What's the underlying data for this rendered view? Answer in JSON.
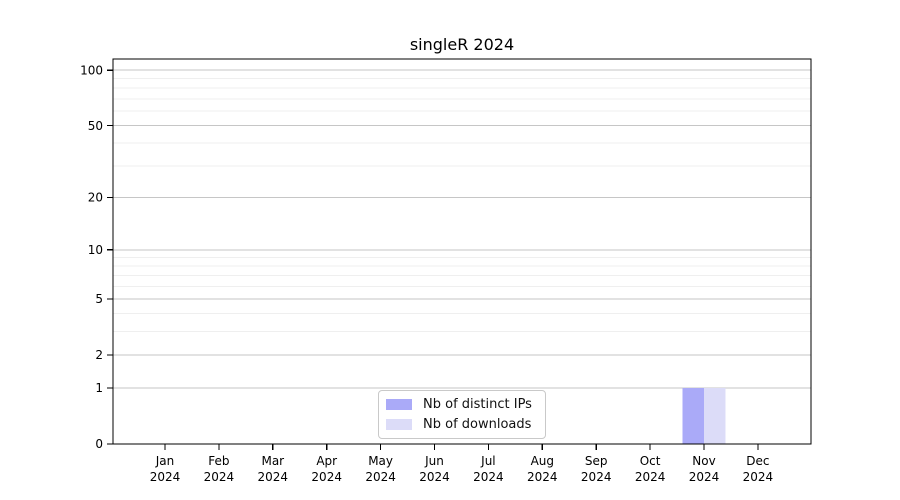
{
  "title": "singleR 2024",
  "axes": {
    "y_tick_labels": [
      "0",
      "1",
      "2",
      "5",
      "10",
      "20",
      "50",
      "100"
    ],
    "x_tick_labels": [
      "Jan 2024",
      "Feb 2024",
      "Mar 2024",
      "Apr 2024",
      "May 2024",
      "Jun 2024",
      "Jul 2024",
      "Aug 2024",
      "Sep 2024",
      "Oct 2024",
      "Nov 2024",
      "Dec 2024"
    ]
  },
  "legend": {
    "items": [
      {
        "label": "Nb of distinct IPs",
        "color": "#aaaaf8"
      },
      {
        "label": "Nb of downloads",
        "color": "#dcdcf8"
      }
    ]
  },
  "colors": {
    "major_grid": "#c6c6c6",
    "minor_grid": "#efefef",
    "spine": "#000000",
    "bar_distinct_ips": "#aaaaf8",
    "bar_downloads": "#dcdcf8"
  },
  "chart_data": {
    "type": "bar",
    "title": "singleR 2024",
    "categories": [
      "Jan 2024",
      "Feb 2024",
      "Mar 2024",
      "Apr 2024",
      "May 2024",
      "Jun 2024",
      "Jul 2024",
      "Aug 2024",
      "Sep 2024",
      "Oct 2024",
      "Nov 2024",
      "Dec 2024"
    ],
    "series": [
      {
        "name": "Nb of distinct IPs",
        "color": "#aaaaf8",
        "values": [
          0,
          0,
          0,
          0,
          0,
          0,
          0,
          0,
          0,
          0,
          1,
          0
        ]
      },
      {
        "name": "Nb of downloads",
        "color": "#dcdcf8",
        "values": [
          0,
          0,
          0,
          0,
          0,
          0,
          0,
          0,
          0,
          0,
          1,
          0
        ]
      }
    ],
    "xlabel": "",
    "ylabel": "",
    "yscale": "log10(value+1)",
    "yticks": [
      0,
      1,
      2,
      5,
      10,
      20,
      50,
      100
    ],
    "yticks_minor": [
      3,
      4,
      6,
      7,
      8,
      9,
      30,
      40,
      60,
      70,
      80,
      90
    ],
    "ylim": [
      0,
      115
    ],
    "grid": "horizontal",
    "legend_position": "lower center"
  }
}
